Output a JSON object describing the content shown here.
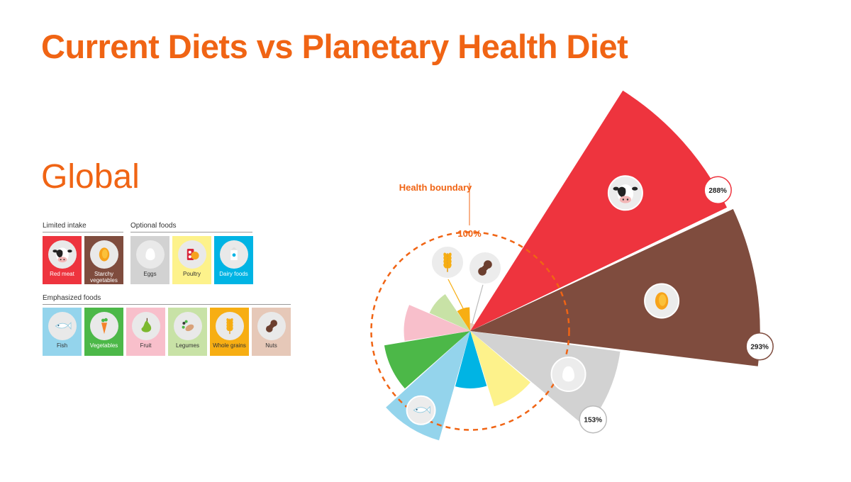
{
  "title": "Current Diets vs Planetary Health Diet",
  "region": "Global",
  "legend": {
    "groups": [
      {
        "key": "limited",
        "label": "Limited intake"
      },
      {
        "key": "optional",
        "label": "Optional foods"
      },
      {
        "key": "emphasized",
        "label": "Emphasized foods"
      }
    ],
    "tiles": [
      {
        "label": "Red meat",
        "color": "#ee343e",
        "icon": "cow-icon",
        "text": "light"
      },
      {
        "label": "Starchy vegetables",
        "color": "#7f4c3e",
        "icon": "potato-icon",
        "text": "light"
      },
      {
        "label": "Eggs",
        "color": "#d2d2d2",
        "icon": "egg-icon",
        "text": "dark"
      },
      {
        "label": "Poultry",
        "color": "#fdf28b",
        "icon": "chicken-icon",
        "text": "dark"
      },
      {
        "label": "Dairy foods",
        "color": "#00b4e4",
        "icon": "milk-icon",
        "text": "light"
      },
      {
        "label": "Fish",
        "color": "#94d4ec",
        "icon": "fish-icon",
        "text": "dark"
      },
      {
        "label": "Vegetables",
        "color": "#4cb848",
        "icon": "carrot-icon",
        "text": "light"
      },
      {
        "label": "Fruit",
        "color": "#f8bfcb",
        "icon": "pear-icon",
        "text": "dark"
      },
      {
        "label": "Legumes",
        "color": "#c8e2a6",
        "icon": "beans-icon",
        "text": "dark"
      },
      {
        "label": "Whole grains",
        "color": "#f7ae13",
        "icon": "wheat-icon",
        "text": "dark"
      },
      {
        "label": "Nuts",
        "color": "#e6c8b8",
        "icon": "peanut-icon",
        "text": "dark"
      }
    ]
  },
  "chart_data": {
    "type": "polar-bar",
    "reference_label": "Health boundary",
    "reference_value_label": "100%",
    "reference_value": 100,
    "categories": [
      "Red meat",
      "Starchy vegetables",
      "Eggs",
      "Poultry",
      "Dairy foods",
      "Fish",
      "Vegetables",
      "Fruit",
      "Legumes",
      "Whole grains",
      "Nuts"
    ],
    "values": [
      288,
      293,
      153,
      80,
      58,
      115,
      88,
      67,
      45,
      24,
      8
    ],
    "value_labels": [
      "288%",
      "293%",
      "153%",
      "",
      "",
      "",
      "",
      "",
      "",
      "",
      ""
    ],
    "colors": [
      "#ee343e",
      "#7f4c3e",
      "#d2d2d2",
      "#fdf28b",
      "#00b4e4",
      "#94d4ec",
      "#4cb848",
      "#f8bfcb",
      "#c8e2a6",
      "#f7ae13",
      "#e6c8b8"
    ],
    "icons": [
      "cow-icon",
      "potato-icon",
      "egg-icon",
      "",
      "",
      "fish-icon",
      "",
      "",
      "",
      "wheat-icon",
      "peanut-icon"
    ]
  }
}
